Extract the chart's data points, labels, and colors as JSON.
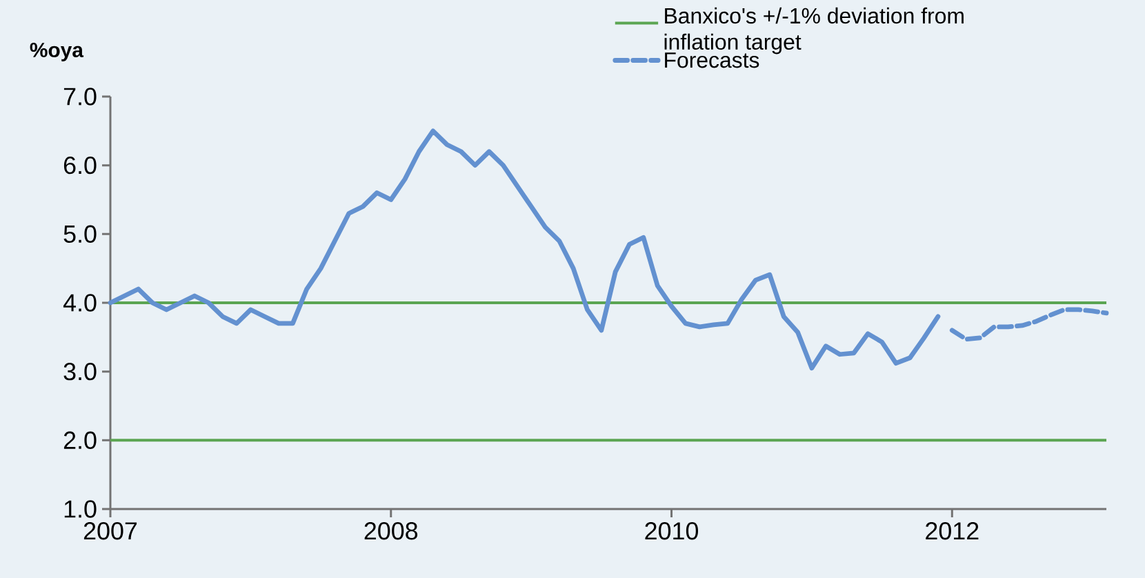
{
  "chart_data": {
    "type": "line",
    "ylabel": "%oya",
    "categories": [
      "2007",
      null,
      null,
      null,
      null,
      null,
      null,
      null,
      null,
      null,
      null,
      null,
      null,
      null,
      null,
      null,
      null,
      null,
      null,
      null,
      "2008",
      null,
      null,
      null,
      null,
      null,
      null,
      null,
      null,
      null,
      null,
      null,
      null,
      null,
      null,
      null,
      null,
      null,
      null,
      null,
      "2010",
      null,
      null,
      null,
      null,
      null,
      null,
      null,
      null,
      null,
      null,
      null,
      null,
      null,
      null,
      null,
      null,
      null,
      null,
      null,
      "2012",
      null,
      null,
      null,
      null,
      null,
      null,
      null,
      null,
      null,
      null,
      null
    ],
    "ylim": [
      1,
      7
    ],
    "yticks": [
      {
        "value": 1,
        "label": "1.0"
      },
      {
        "value": 2,
        "label": "2.0"
      },
      {
        "value": 3,
        "label": "3.0"
      },
      {
        "value": 4,
        "label": "4.0"
      },
      {
        "value": 5,
        "label": "5.0"
      },
      {
        "value": 6,
        "label": "6.0"
      },
      {
        "value": 7,
        "label": "7.0"
      }
    ],
    "series": [
      {
        "color": "#6391d0",
        "line_style": "solid",
        "values": [
          4.0,
          4.1,
          4.2,
          4.0,
          3.9,
          4.0,
          4.1,
          4.0,
          3.8,
          3.7,
          3.9,
          3.8,
          3.7,
          3.7,
          4.2,
          4.5,
          4.9,
          5.3,
          5.4,
          5.6,
          5.5,
          5.8,
          6.2,
          6.5,
          6.3,
          6.2,
          6.0,
          6.2,
          6.0,
          5.7,
          5.4,
          5.1,
          4.9,
          4.5,
          3.9,
          3.6,
          4.45,
          4.85,
          4.95,
          4.25,
          3.95,
          3.7,
          3.65,
          3.68,
          3.7,
          4.05,
          4.33,
          4.41,
          3.8,
          3.57,
          3.05,
          3.37,
          3.25,
          3.27,
          3.55,
          3.43,
          3.12,
          3.2,
          3.49,
          3.8,
          null,
          null,
          null,
          null,
          null,
          null,
          null,
          null,
          null,
          null,
          null,
          null
        ]
      },
      {
        "name": "Forecasts",
        "color": "#6391d0",
        "line_style": "dashed",
        "values": [
          null,
          null,
          null,
          null,
          null,
          null,
          null,
          null,
          null,
          null,
          null,
          null,
          null,
          null,
          null,
          null,
          null,
          null,
          null,
          null,
          null,
          null,
          null,
          null,
          null,
          null,
          null,
          null,
          null,
          null,
          null,
          null,
          null,
          null,
          null,
          null,
          null,
          null,
          null,
          null,
          null,
          null,
          null,
          null,
          null,
          null,
          null,
          null,
          null,
          null,
          null,
          null,
          null,
          null,
          null,
          null,
          null,
          null,
          null,
          null,
          3.6,
          3.47,
          3.49,
          3.65,
          3.65,
          3.67,
          3.73,
          3.82,
          3.9,
          3.9,
          3.88,
          3.85
        ]
      }
    ],
    "ref_lines": [
      {
        "axis": "y",
        "value": 4,
        "label": "Banxico's +/-1% deviation from inflation target",
        "color": "#5ba552"
      },
      {
        "axis": "y",
        "value": 2,
        "color": "#5ba552"
      }
    ],
    "legend": "top right"
  }
}
